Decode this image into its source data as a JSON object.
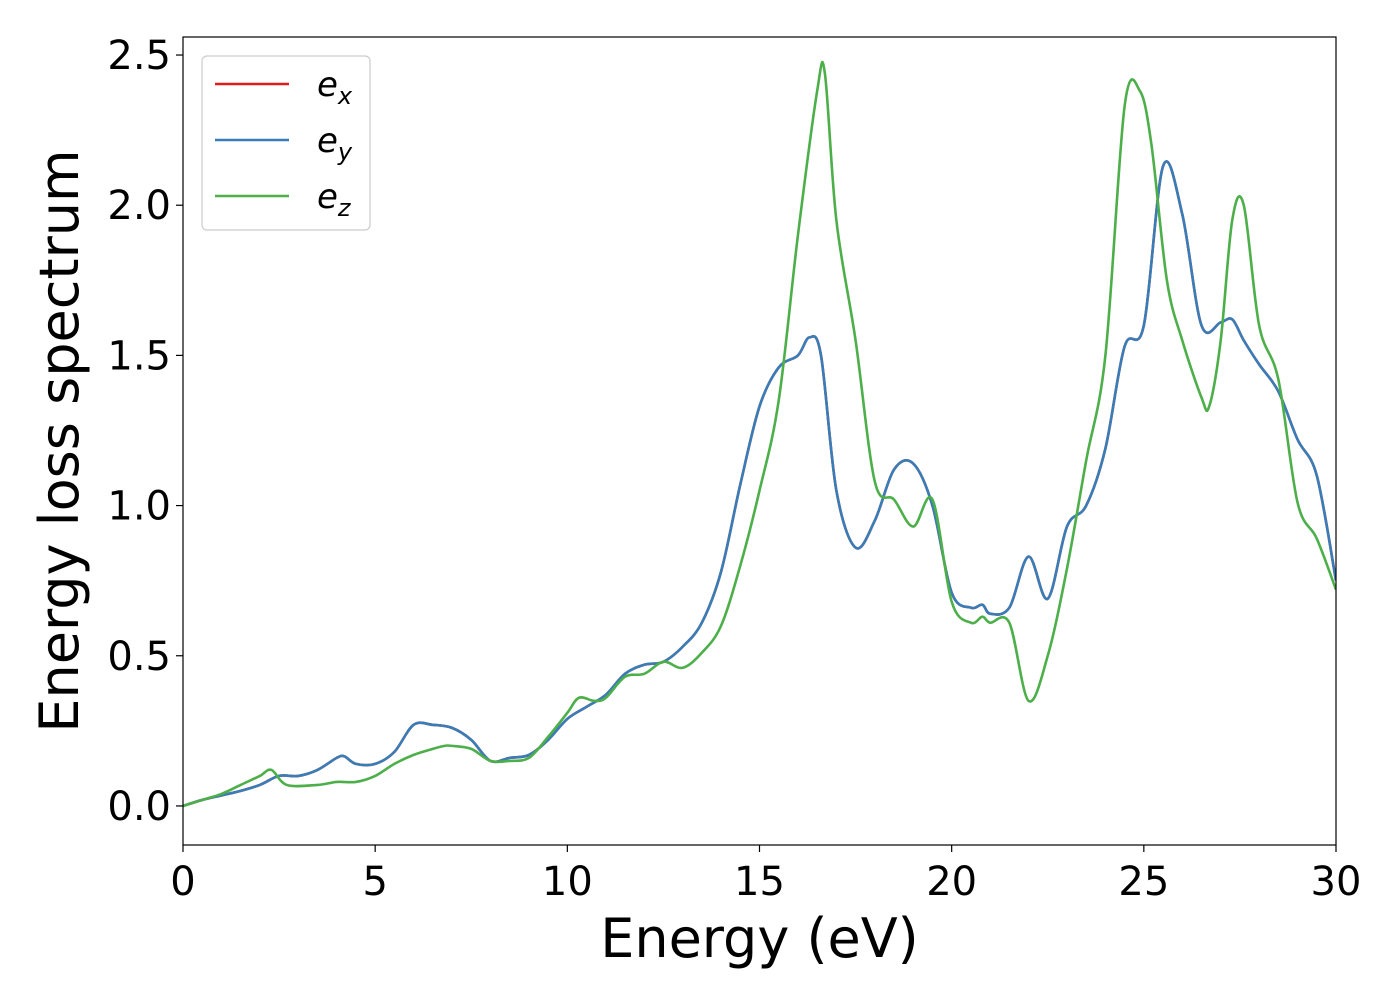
{
  "chart_data": {
    "type": "line",
    "xlabel": "Energy (eV)",
    "ylabel": "Energy loss spectrum",
    "xlim": [
      0,
      30
    ],
    "ylim": [
      -0.13,
      2.56
    ],
    "xticks": [
      0,
      5,
      10,
      15,
      20,
      25,
      30
    ],
    "yticks": [
      0.0,
      0.5,
      1.0,
      1.5,
      2.0,
      2.5
    ],
    "xtick_labels": [
      "0",
      "5",
      "10",
      "15",
      "20",
      "25",
      "30"
    ],
    "ytick_labels": [
      "0.0",
      "0.5",
      "1.0",
      "1.5",
      "2.0",
      "2.5"
    ],
    "grid": false,
    "legend_position": "top-left",
    "series": [
      {
        "name": "e_x",
        "label_base": "e",
        "label_sub": "x",
        "color": "#e41a1c",
        "x": [
          0,
          0.5,
          1,
          1.5,
          2,
          2.5,
          3,
          3.5,
          4,
          4.2,
          4.5,
          5,
          5.5,
          6,
          6.5,
          7,
          7.5,
          8,
          8.5,
          9,
          9.5,
          10,
          10.5,
          11,
          11.5,
          12,
          12.5,
          13,
          13.5,
          14,
          14.5,
          15,
          15.5,
          16,
          16.3,
          16.6,
          17,
          17.5,
          18,
          18.5,
          19,
          19.5,
          20,
          20.5,
          20.8,
          21,
          21.5,
          22,
          22.5,
          23,
          23.5,
          24,
          24.5,
          25,
          25.5,
          26,
          26.5,
          27,
          27.3,
          27.6,
          28,
          28.5,
          29,
          29.5,
          30
        ],
        "y": [
          0,
          0.02,
          0.035,
          0.05,
          0.07,
          0.1,
          0.1,
          0.12,
          0.16,
          0.165,
          0.14,
          0.14,
          0.18,
          0.27,
          0.27,
          0.26,
          0.22,
          0.15,
          0.16,
          0.17,
          0.22,
          0.29,
          0.33,
          0.37,
          0.44,
          0.47,
          0.48,
          0.53,
          0.61,
          0.78,
          1.07,
          1.33,
          1.46,
          1.5,
          1.56,
          1.5,
          1.05,
          0.86,
          0.95,
          1.12,
          1.14,
          1.0,
          0.71,
          0.66,
          0.67,
          0.64,
          0.66,
          0.83,
          0.69,
          0.93,
          1.0,
          1.19,
          1.53,
          1.6,
          2.13,
          1.97,
          1.6,
          1.61,
          1.62,
          1.55,
          1.47,
          1.38,
          1.22,
          1.1,
          0.75
        ]
      },
      {
        "name": "e_y",
        "label_base": "e",
        "label_sub": "y",
        "color": "#377eb8",
        "x": [
          0,
          0.5,
          1,
          1.5,
          2,
          2.5,
          3,
          3.5,
          4,
          4.2,
          4.5,
          5,
          5.5,
          6,
          6.5,
          7,
          7.5,
          8,
          8.5,
          9,
          9.5,
          10,
          10.5,
          11,
          11.5,
          12,
          12.5,
          13,
          13.5,
          14,
          14.5,
          15,
          15.5,
          16,
          16.3,
          16.6,
          17,
          17.5,
          18,
          18.5,
          19,
          19.5,
          20,
          20.5,
          20.8,
          21,
          21.5,
          22,
          22.5,
          23,
          23.5,
          24,
          24.5,
          25,
          25.5,
          26,
          26.5,
          27,
          27.3,
          27.6,
          28,
          28.5,
          29,
          29.5,
          30
        ],
        "y": [
          0,
          0.02,
          0.035,
          0.05,
          0.07,
          0.1,
          0.1,
          0.12,
          0.16,
          0.165,
          0.14,
          0.14,
          0.18,
          0.27,
          0.27,
          0.26,
          0.22,
          0.15,
          0.16,
          0.17,
          0.22,
          0.29,
          0.33,
          0.37,
          0.44,
          0.47,
          0.48,
          0.53,
          0.61,
          0.78,
          1.07,
          1.33,
          1.46,
          1.5,
          1.56,
          1.5,
          1.05,
          0.86,
          0.95,
          1.12,
          1.14,
          1.0,
          0.71,
          0.66,
          0.67,
          0.64,
          0.66,
          0.83,
          0.69,
          0.93,
          1.0,
          1.19,
          1.53,
          1.6,
          2.13,
          1.97,
          1.6,
          1.61,
          1.62,
          1.55,
          1.47,
          1.38,
          1.22,
          1.1,
          0.75
        ]
      },
      {
        "name": "e_z",
        "label_base": "e",
        "label_sub": "z",
        "color": "#4daf4a",
        "x": [
          0,
          0.5,
          1,
          1.5,
          2,
          2.3,
          2.7,
          3.5,
          4,
          4.5,
          5,
          5.5,
          6,
          6.5,
          6.8,
          7,
          7.5,
          8,
          8.5,
          9,
          9.5,
          10,
          10.3,
          10.7,
          11,
          11.5,
          12,
          12.5,
          13,
          13.5,
          14,
          14.5,
          15,
          15.5,
          16,
          16.5,
          16.7,
          17,
          17.5,
          18,
          18.5,
          19,
          19.5,
          20,
          20.5,
          20.8,
          21,
          21.5,
          22,
          22.5,
          23,
          23.5,
          24,
          24.5,
          24.9,
          25.2,
          25.6,
          26,
          26.5,
          26.7,
          27,
          27.3,
          27.6,
          28,
          28.5,
          29,
          29.5,
          30
        ],
        "y": [
          0,
          0.02,
          0.04,
          0.07,
          0.1,
          0.12,
          0.07,
          0.07,
          0.08,
          0.08,
          0.1,
          0.14,
          0.17,
          0.19,
          0.2,
          0.2,
          0.19,
          0.15,
          0.15,
          0.16,
          0.23,
          0.31,
          0.36,
          0.35,
          0.36,
          0.43,
          0.44,
          0.48,
          0.46,
          0.51,
          0.6,
          0.8,
          1.05,
          1.35,
          1.9,
          2.38,
          2.44,
          1.95,
          1.55,
          1.08,
          1.02,
          0.93,
          1.02,
          0.68,
          0.61,
          0.63,
          0.61,
          0.61,
          0.35,
          0.5,
          0.79,
          1.15,
          1.5,
          2.33,
          2.38,
          2.2,
          1.75,
          1.55,
          1.36,
          1.33,
          1.55,
          1.95,
          2.0,
          1.6,
          1.42,
          1.01,
          0.89,
          0.72
        ]
      }
    ]
  }
}
